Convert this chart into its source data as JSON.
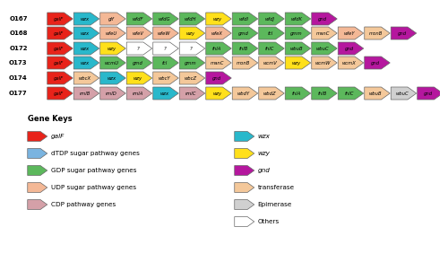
{
  "rows": [
    {
      "label": "O167",
      "genes": [
        {
          "name": "galF",
          "color": "#e8231a"
        },
        {
          "name": "wzx",
          "color": "#29b8cb"
        },
        {
          "name": "glf",
          "color": "#f4b896"
        },
        {
          "name": "wfdF",
          "color": "#5cb85c"
        },
        {
          "name": "wfdG",
          "color": "#5cb85c"
        },
        {
          "name": "wfdH",
          "color": "#5cb85c"
        },
        {
          "name": "wzy",
          "color": "#ffe01b"
        },
        {
          "name": "wfdI",
          "color": "#5cb85c"
        },
        {
          "name": "wfdJ",
          "color": "#5cb85c"
        },
        {
          "name": "wfdK",
          "color": "#5cb85c"
        },
        {
          "name": "gnd",
          "color": "#b5179e"
        }
      ]
    },
    {
      "label": "O168",
      "genes": [
        {
          "name": "galF",
          "color": "#e8231a"
        },
        {
          "name": "wzx",
          "color": "#29b8cb"
        },
        {
          "name": "wfeU",
          "color": "#f4b896"
        },
        {
          "name": "wfeV",
          "color": "#f4b896"
        },
        {
          "name": "wfeW",
          "color": "#f4b896"
        },
        {
          "name": "wzy",
          "color": "#ffe01b"
        },
        {
          "name": "wfeX",
          "color": "#f4b896"
        },
        {
          "name": "gmd",
          "color": "#5cb85c"
        },
        {
          "name": "fcl",
          "color": "#5cb85c"
        },
        {
          "name": "gmm",
          "color": "#5cb85c"
        },
        {
          "name": "manC",
          "color": "#f4c89a"
        },
        {
          "name": "wfeY",
          "color": "#f4b896"
        },
        {
          "name": "monB",
          "color": "#f4c89a"
        },
        {
          "name": "gnd",
          "color": "#b5179e"
        }
      ]
    },
    {
      "label": "O172",
      "genes": [
        {
          "name": "galF",
          "color": "#e8231a"
        },
        {
          "name": "wzx",
          "color": "#29b8cb"
        },
        {
          "name": "wzy",
          "color": "#ffe01b"
        },
        {
          "name": "?",
          "color": "#ffffff"
        },
        {
          "name": "?",
          "color": "#ffffff"
        },
        {
          "name": "?",
          "color": "#ffffff"
        },
        {
          "name": "fnlA",
          "color": "#5cb85c"
        },
        {
          "name": "fnlB",
          "color": "#5cb85c"
        },
        {
          "name": "fnlC",
          "color": "#5cb85c"
        },
        {
          "name": "wbuB",
          "color": "#5cb85c"
        },
        {
          "name": "wbuC",
          "color": "#5cb85c"
        },
        {
          "name": "gnd",
          "color": "#b5179e"
        }
      ]
    },
    {
      "label": "O173",
      "genes": [
        {
          "name": "galF",
          "color": "#e8231a"
        },
        {
          "name": "wzx",
          "color": "#29b8cb"
        },
        {
          "name": "wcmU",
          "color": "#5cb85c"
        },
        {
          "name": "gmd",
          "color": "#5cb85c"
        },
        {
          "name": "fcl",
          "color": "#5cb85c"
        },
        {
          "name": "gmm",
          "color": "#5cb85c"
        },
        {
          "name": "manC",
          "color": "#f4c89a"
        },
        {
          "name": "monB",
          "color": "#f4c89a"
        },
        {
          "name": "wcmV",
          "color": "#f4c89a"
        },
        {
          "name": "wzy",
          "color": "#ffe01b"
        },
        {
          "name": "wcmW",
          "color": "#f4c89a"
        },
        {
          "name": "wcmX",
          "color": "#f4c89a"
        },
        {
          "name": "gnd",
          "color": "#b5179e"
        }
      ]
    },
    {
      "label": "O174",
      "genes": [
        {
          "name": "galF",
          "color": "#e8231a"
        },
        {
          "name": "wbcX",
          "color": "#f4c89a"
        },
        {
          "name": "wzx",
          "color": "#29b8cb"
        },
        {
          "name": "wzy",
          "color": "#ffe01b"
        },
        {
          "name": "wbcY",
          "color": "#f4c89a"
        },
        {
          "name": "wbcZ",
          "color": "#f4c89a"
        },
        {
          "name": "gnd",
          "color": "#b5179e"
        }
      ]
    },
    {
      "label": "O177",
      "genes": [
        {
          "name": "galF",
          "color": "#e8231a"
        },
        {
          "name": "rmlB",
          "color": "#d4a0a8"
        },
        {
          "name": "rmlD",
          "color": "#d4a0a8"
        },
        {
          "name": "rmlA",
          "color": "#d4a0a8"
        },
        {
          "name": "wzx",
          "color": "#29b8cb"
        },
        {
          "name": "rmlC",
          "color": "#d4a0a8"
        },
        {
          "name": "wzy",
          "color": "#ffe01b"
        },
        {
          "name": "wbdY",
          "color": "#f4c89a"
        },
        {
          "name": "wbdZ",
          "color": "#f4c89a"
        },
        {
          "name": "fnlA",
          "color": "#5cb85c"
        },
        {
          "name": "fnlB",
          "color": "#5cb85c"
        },
        {
          "name": "fnlC",
          "color": "#5cb85c"
        },
        {
          "name": "wbuB",
          "color": "#f4c89a"
        },
        {
          "name": "wbuC",
          "color": "#d0d0d0"
        },
        {
          "name": "gnd",
          "color": "#b5179e"
        }
      ]
    }
  ],
  "legend_left": [
    {
      "label": "galF",
      "color": "#e8231a",
      "italic": true
    },
    {
      "label": "dTDP sugar pathway genes",
      "color": "#7ab4e0",
      "italic": false
    },
    {
      "label": "GDP sugar pathway genes",
      "color": "#5cb85c",
      "italic": false
    },
    {
      "label": "UDP sugar pathway genes",
      "color": "#f4b896",
      "italic": false
    },
    {
      "label": "CDP pathway genes",
      "color": "#d4a0a8",
      "italic": false
    }
  ],
  "legend_right": [
    {
      "label": "wzx",
      "color": "#29b8cb",
      "italic": true
    },
    {
      "label": "wzy",
      "color": "#ffe01b",
      "italic": true
    },
    {
      "label": "gnd",
      "color": "#b5179e",
      "italic": true
    },
    {
      "label": "transferase",
      "color": "#f4c89a",
      "italic": false
    },
    {
      "label": "Epimerase",
      "color": "#d0d0d0",
      "italic": false
    },
    {
      "label": "Others",
      "color": "#ffffff",
      "italic": false
    }
  ],
  "bg_color": "#ffffff"
}
